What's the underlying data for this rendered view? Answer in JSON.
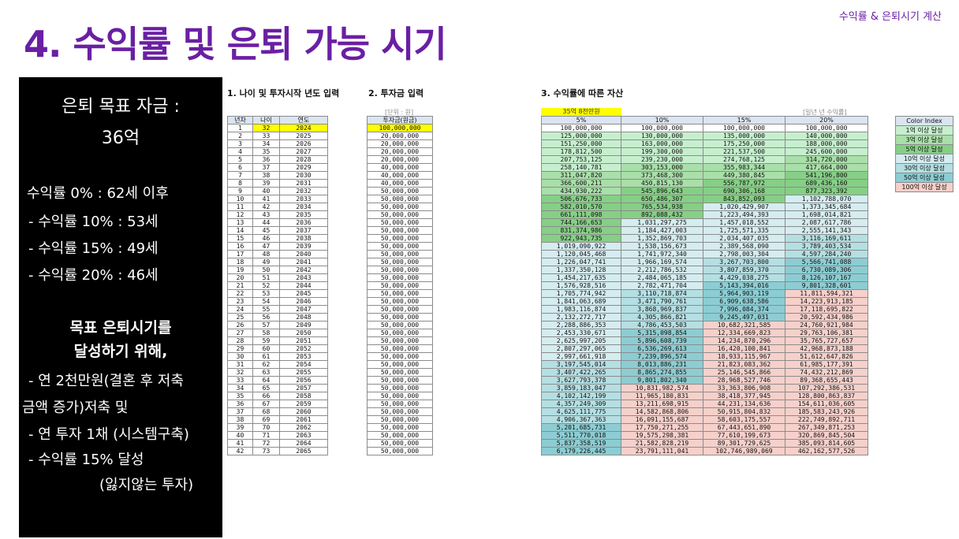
{
  "header": {
    "top_label": "수익률 & 은퇴시기 계산",
    "title": "4. 수익률 및 은퇴 가능 시기"
  },
  "side": {
    "goal_line1": "은퇴 목표 자금 :",
    "goal_line2": "36억",
    "rates": [
      "수익률   0% : 62세 이후",
      " - 수익률 10% : 53세",
      " - 수익률 15% : 49세",
      " - 수익률 20% : 46세"
    ],
    "target_line1": "목표 은퇴시기를",
    "target_line2": "달성하기 위해,",
    "plan": [
      " - 연 2천만원(결혼 후 저축",
      "금액 증가)저축 및",
      " - 연 투자 1채 (시스템구축)",
      " - 수익률 15% 달성",
      "(잃지않는 투자)"
    ]
  },
  "sections": {
    "s1": "1. 나이 및 투자시작 년도 입력",
    "s2": "2. 투자금 입력",
    "s3": "3. 수익률에 따른 자산",
    "unit_won": "[단위 : 원]",
    "annual_rate_note": "[일년 년 수익률]",
    "target_label": "35억 8천만원"
  },
  "colors": {
    "accent": "#6a1fa3",
    "highlight": "#ffff00",
    "header": "#dbe5f1"
  },
  "table1": {
    "headers": [
      "년차",
      "나이",
      "연도"
    ],
    "rows": [
      [
        "1",
        "32",
        "2024"
      ],
      [
        "2",
        "33",
        "2025"
      ],
      [
        "3",
        "34",
        "2026"
      ],
      [
        "4",
        "35",
        "2027"
      ],
      [
        "5",
        "36",
        "2028"
      ],
      [
        "6",
        "37",
        "2029"
      ],
      [
        "7",
        "38",
        "2030"
      ],
      [
        "8",
        "39",
        "2031"
      ],
      [
        "9",
        "40",
        "2032"
      ],
      [
        "10",
        "41",
        "2033"
      ],
      [
        "11",
        "42",
        "2034"
      ],
      [
        "12",
        "43",
        "2035"
      ],
      [
        "13",
        "44",
        "2036"
      ],
      [
        "14",
        "45",
        "2037"
      ],
      [
        "15",
        "46",
        "2038"
      ],
      [
        "16",
        "47",
        "2039"
      ],
      [
        "17",
        "48",
        "2040"
      ],
      [
        "18",
        "49",
        "2041"
      ],
      [
        "19",
        "50",
        "2042"
      ],
      [
        "20",
        "51",
        "2043"
      ],
      [
        "21",
        "52",
        "2044"
      ],
      [
        "22",
        "53",
        "2045"
      ],
      [
        "23",
        "54",
        "2046"
      ],
      [
        "24",
        "55",
        "2047"
      ],
      [
        "25",
        "56",
        "2048"
      ],
      [
        "26",
        "57",
        "2049"
      ],
      [
        "27",
        "58",
        "2050"
      ],
      [
        "28",
        "59",
        "2051"
      ],
      [
        "29",
        "60",
        "2052"
      ],
      [
        "30",
        "61",
        "2053"
      ],
      [
        "31",
        "62",
        "2054"
      ],
      [
        "32",
        "63",
        "2055"
      ],
      [
        "33",
        "64",
        "2056"
      ],
      [
        "34",
        "65",
        "2057"
      ],
      [
        "35",
        "66",
        "2058"
      ],
      [
        "36",
        "67",
        "2059"
      ],
      [
        "37",
        "68",
        "2060"
      ],
      [
        "38",
        "69",
        "2061"
      ],
      [
        "39",
        "70",
        "2062"
      ],
      [
        "40",
        "71",
        "2063"
      ],
      [
        "41",
        "72",
        "2064"
      ],
      [
        "42",
        "73",
        "2065"
      ]
    ]
  },
  "table2": {
    "header": "투자금(원금)",
    "rows": [
      "100,000,000",
      "20,000,000",
      "20,000,000",
      "20,000,000",
      "20,000,000",
      "40,000,000",
      "40,000,000",
      "40,000,000",
      "50,000,000",
      "50,000,000",
      "50,000,000",
      "50,000,000",
      "50,000,000",
      "50,000,000",
      "50,000,000",
      "50,000,000",
      "50,000,000",
      "50,000,000",
      "50,000,000",
      "50,000,000",
      "50,000,000",
      "50,000,000",
      "50,000,000",
      "50,000,000",
      "50,000,000",
      "50,000,000",
      "50,000,000",
      "50,000,000",
      "50,000,000",
      "50,000,000",
      "50,000,000",
      "50,000,000",
      "50,000,000",
      "50,000,000",
      "50,000,000",
      "50,000,000",
      "50,000,000",
      "50,000,000",
      "50,000,000",
      "50,000,000",
      "50,000,000",
      "50,000,000"
    ]
  },
  "table3": {
    "headers": [
      "5%",
      "10%",
      "15%",
      "20%"
    ],
    "rows": [
      [
        "100,000,000",
        "100,000,000",
        "100,000,000",
        "100,000,000"
      ],
      [
        "125,000,000",
        "130,000,000",
        "135,000,000",
        "140,000,000"
      ],
      [
        "151,250,000",
        "163,000,000",
        "175,250,000",
        "188,000,000"
      ],
      [
        "178,812,500",
        "199,300,000",
        "221,537,500",
        "245,600,000"
      ],
      [
        "207,753,125",
        "239,230,000",
        "274,768,125",
        "314,720,000"
      ],
      [
        "258,140,781",
        "303,153,000",
        "355,983,344",
        "417,664,000"
      ],
      [
        "311,047,820",
        "373,468,300",
        "449,380,845",
        "541,196,800"
      ],
      [
        "366,600,211",
        "450,815,130",
        "556,787,972",
        "689,436,160"
      ],
      [
        "434,930,222",
        "545,896,643",
        "690,306,168",
        "877,323,392"
      ],
      [
        "506,676,733",
        "650,486,307",
        "843,852,093",
        "1,102,788,070"
      ],
      [
        "582,010,570",
        "765,534,938",
        "1,020,429,907",
        "1,373,345,684"
      ],
      [
        "661,111,098",
        "892,088,432",
        "1,223,494,393",
        "1,698,014,821"
      ],
      [
        "744,166,653",
        "1,031,297,275",
        "1,457,018,552",
        "2,087,617,786"
      ],
      [
        "831,374,986",
        "1,184,427,003",
        "1,725,571,335",
        "2,555,141,343"
      ],
      [
        "922,943,735",
        "1,352,869,703",
        "2,034,407,035",
        "3,116,169,611"
      ],
      [
        "1,019,090,922",
        "1,538,156,673",
        "2,389,568,090",
        "3,789,403,534"
      ],
      [
        "1,120,045,468",
        "1,741,972,340",
        "2,798,003,304",
        "4,597,284,240"
      ],
      [
        "1,226,047,741",
        "1,966,169,574",
        "3,267,703,800",
        "5,566,741,088"
      ],
      [
        "1,337,350,128",
        "2,212,786,532",
        "3,807,859,370",
        "6,730,089,306"
      ],
      [
        "1,454,217,635",
        "2,484,065,185",
        "4,429,038,275",
        "8,126,107,167"
      ],
      [
        "1,576,928,516",
        "2,782,471,704",
        "5,143,394,016",
        "9,801,328,601"
      ],
      [
        "1,705,774,942",
        "3,110,718,874",
        "5,964,903,119",
        "11,811,594,321"
      ],
      [
        "1,841,063,689",
        "3,471,790,761",
        "6,909,638,586",
        "14,223,913,185"
      ],
      [
        "1,983,116,874",
        "3,868,969,837",
        "7,996,084,374",
        "17,118,695,822"
      ],
      [
        "2,132,272,717",
        "4,305,866,821",
        "9,245,497,031",
        "20,592,434,986"
      ],
      [
        "2,288,886,353",
        "4,786,453,503",
        "10,682,321,585",
        "24,760,921,984"
      ],
      [
        "2,453,330,671",
        "5,315,098,854",
        "12,334,669,823",
        "29,763,106,381"
      ],
      [
        "2,625,997,205",
        "5,896,608,739",
        "14,234,870,296",
        "35,765,727,657"
      ],
      [
        "2,807,297,065",
        "6,536,269,613",
        "16,420,100,841",
        "42,968,873,188"
      ],
      [
        "2,997,661,918",
        "7,239,896,574",
        "18,933,115,967",
        "51,612,647,826"
      ],
      [
        "3,197,545,014",
        "8,013,886,231",
        "21,823,083,362",
        "61,985,177,391"
      ],
      [
        "3,407,422,265",
        "8,865,274,855",
        "25,146,545,866",
        "74,432,212,869"
      ],
      [
        "3,627,793,378",
        "9,801,802,340",
        "28,968,527,746",
        "89,368,655,443"
      ],
      [
        "3,859,183,047",
        "10,831,982,574",
        "33,363,806,908",
        "107,292,386,531"
      ],
      [
        "4,102,142,199",
        "11,965,180,831",
        "38,418,377,945",
        "128,800,863,837"
      ],
      [
        "4,357,249,309",
        "13,211,698,915",
        "44,231,134,636",
        "154,611,036,605"
      ],
      [
        "4,625,111,775",
        "14,582,868,806",
        "50,915,804,832",
        "185,583,243,926"
      ],
      [
        "4,906,367,363",
        "16,091,155,687",
        "58,603,175,557",
        "222,749,892,711"
      ],
      [
        "5,201,685,731",
        "17,750,271,255",
        "67,443,651,890",
        "267,349,871,253"
      ],
      [
        "5,511,770,018",
        "19,575,298,381",
        "77,610,199,673",
        "320,869,845,504"
      ],
      [
        "5,837,358,519",
        "21,582,828,219",
        "89,301,729,625",
        "385,093,814,605"
      ],
      [
        "6,179,226,445",
        "23,791,111,041",
        "102,746,989,069",
        "462,162,577,526"
      ]
    ]
  },
  "color_index": {
    "header": "Color Index",
    "items": [
      {
        "label": "1억 이상 달성",
        "color": "#c6efce"
      },
      {
        "label": "3억 이상 달성",
        "color": "#a9dfa9"
      },
      {
        "label": "5억 이상 달성",
        "color": "#86cf86"
      },
      {
        "label": "10억 이상 달성",
        "color": "#d5ecf0"
      },
      {
        "label": "30억 이상 달성",
        "color": "#b4dfe3"
      },
      {
        "label": "50억 이상 달성",
        "color": "#8ccdd3"
      },
      {
        "label": "100억 이상 달성",
        "color": "#f6d0cb"
      }
    ]
  }
}
